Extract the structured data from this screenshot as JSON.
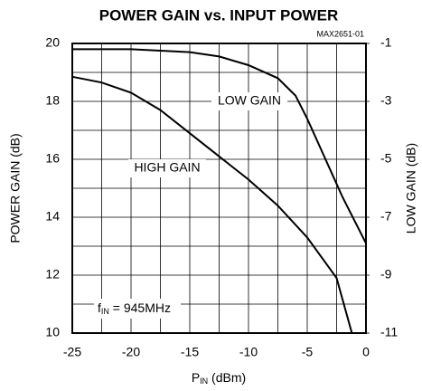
{
  "chart_data": {
    "type": "line",
    "title": "POWER GAIN vs. INPUT POWER",
    "part_number": "MAX2651-01",
    "x_label": {
      "main": "P",
      "sub": "IN",
      "rest": " (dBm)"
    },
    "y_label": "POWER GAIN (dB)",
    "y2_label": "LOW GAIN (dB)",
    "annotations": {
      "low_gain": "LOW GAIN",
      "high_gain": "HIGH GAIN",
      "frequency": {
        "main": "f",
        "sub": "IN",
        "rest": " = 945MHz"
      }
    },
    "xlim": [
      -25,
      0
    ],
    "xticks": [
      -25,
      -20,
      -15,
      -10,
      -5,
      0
    ],
    "ylim": [
      10,
      20
    ],
    "yticks": [
      10,
      12,
      14,
      16,
      18,
      20
    ],
    "y2lim": [
      -11,
      -1
    ],
    "y2ticks": [
      -11,
      -9,
      -7,
      -5,
      -3,
      -1
    ],
    "grid": true,
    "series": [
      {
        "name": "HIGH GAIN",
        "color": "#000000",
        "axis": "y",
        "x": [
          -25,
          -22.5,
          -20,
          -17.5,
          -15,
          -12.5,
          -10,
          -7.5,
          -5,
          -2.5,
          -1.2
        ],
        "values": [
          18.85,
          18.65,
          18.3,
          17.7,
          16.9,
          16.1,
          15.3,
          14.4,
          13.3,
          11.9,
          10
        ]
      },
      {
        "name": "LOW GAIN",
        "color": "#000000",
        "axis": "y2",
        "x": [
          -25,
          -20,
          -15,
          -12.5,
          -10,
          -7.5,
          -6,
          -5,
          -4,
          -3,
          -2,
          -1,
          0
        ],
        "values": [
          -1.2,
          -1.2,
          -1.3,
          -1.45,
          -1.75,
          -2.2,
          -2.8,
          -3.6,
          -4.5,
          -5.4,
          -6.3,
          -7.1,
          -7.9
        ]
      }
    ]
  }
}
